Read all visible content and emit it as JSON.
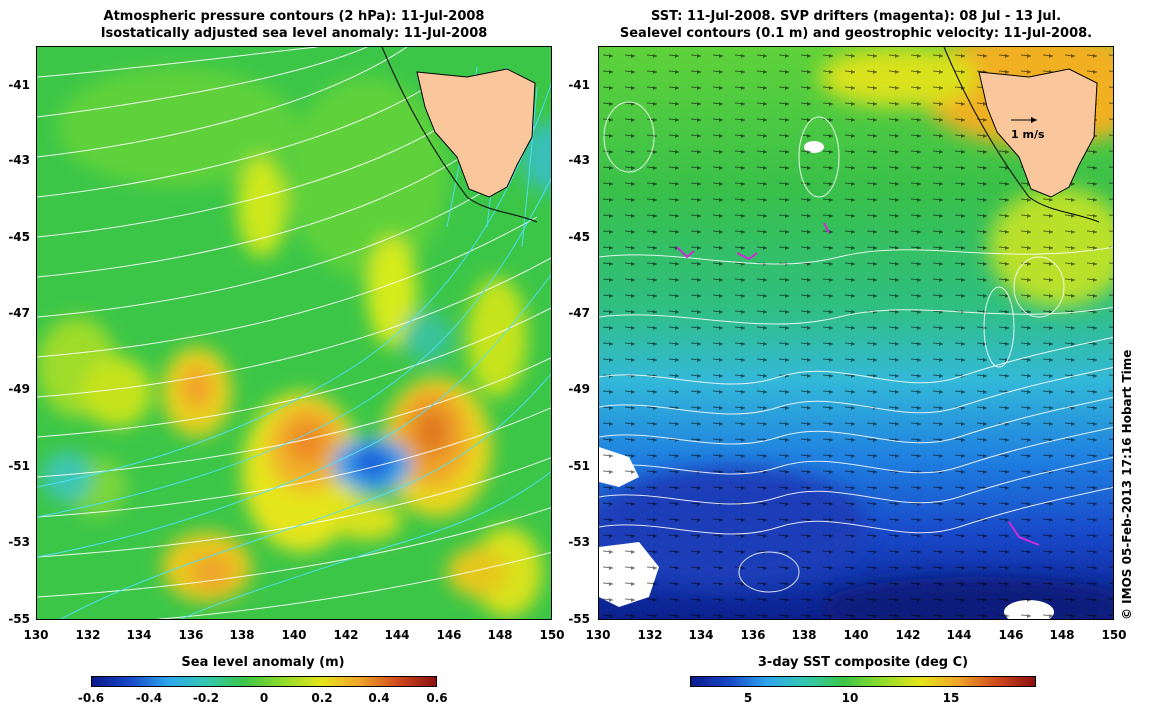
{
  "left": {
    "title_line1": "Atmospheric pressure contours (2 hPa): 11-Jul-2008",
    "title_line2": "Isostatically adjusted sea level anomaly: 11-Jul-2008",
    "colorbar_title": "Sea level anomaly (m)",
    "colorbar_ticks": [
      "-0.6",
      "-0.4",
      "-0.2",
      "0",
      "0.2",
      "0.4",
      "0.6"
    ],
    "colorbar_range": [
      -0.6,
      0.6
    ]
  },
  "right": {
    "title_line1": "SST: 11-Jul-2008. SVP drifters (magenta): 08 Jul - 13 Jul.",
    "title_line2": "Sealevel contours (0.1 m) and geostrophic velocity: 11-Jul-2008.",
    "colorbar_title": "3-day SST composite (deg C)",
    "colorbar_ticks": [
      "5",
      "10",
      "15"
    ],
    "colorbar_range": [
      2,
      19
    ],
    "velocity_scale_label": "1 m/s"
  },
  "map": {
    "lon_range": [
      130,
      150
    ],
    "lat_range": [
      -55,
      -40
    ],
    "x_ticks": [
      "130",
      "132",
      "134",
      "136",
      "138",
      "140",
      "142",
      "144",
      "146",
      "148",
      "150"
    ],
    "y_ticks": [
      "-41",
      "-43",
      "-45",
      "-47",
      "-49",
      "-51",
      "-53",
      "-55"
    ],
    "land": "Tasmania",
    "land_color": "#f9c79b"
  },
  "credit": "© IMOS 05-Feb-2013 17:16 Hobart Time"
}
